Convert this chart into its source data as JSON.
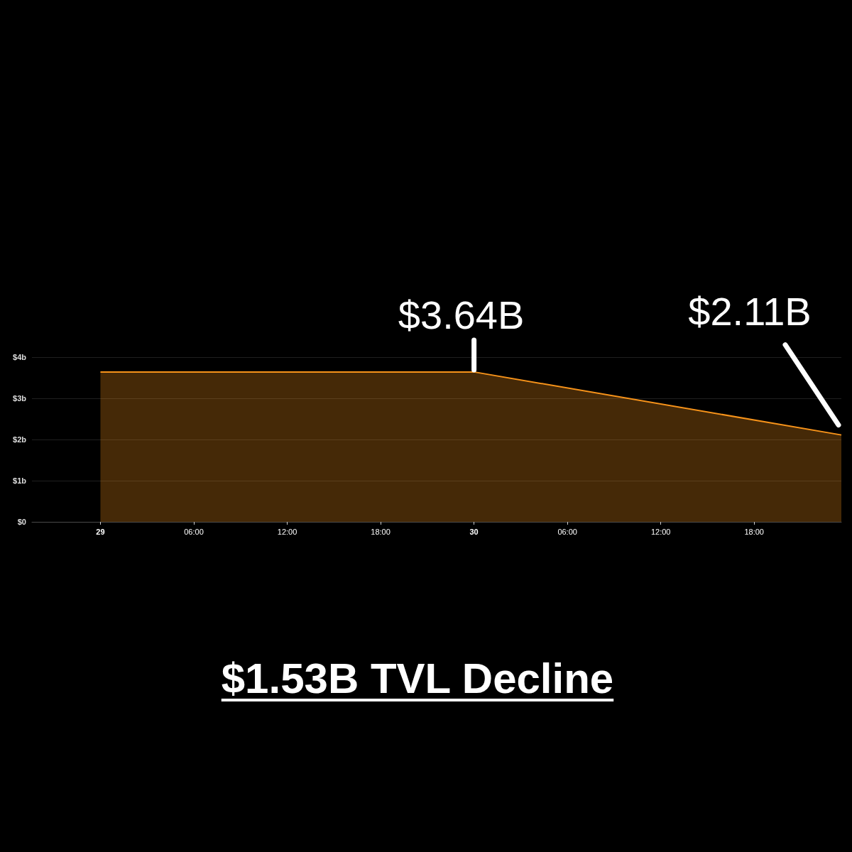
{
  "chart_data": {
    "type": "area",
    "title": "$1.53B TVL Decline",
    "x": [
      "--03-29T00:00",
      "--03-30T00:00",
      "--03-30T23:36"
    ],
    "values": [
      3.64,
      3.64,
      2.11
    ],
    "color": "#f7931a",
    "xlim": [
      "--03-28T19:36",
      "--03-30T23:36"
    ],
    "xticks": [
      {
        "value": "--03-29T00:00",
        "label": "29"
      },
      {
        "value": "--03-29T06:00",
        "label": "06:00"
      },
      {
        "value": "--03-29T12:00",
        "label": "12:00"
      },
      {
        "value": "--03-29T18:00",
        "label": "18:00"
      },
      {
        "value": "--03-30T00:00",
        "label": "30"
      },
      {
        "value": "--03-30T06:00",
        "label": "06:00"
      },
      {
        "value": "--03-30T12:00",
        "label": "12:00"
      },
      {
        "value": "--03-30T18:00",
        "label": "18:00"
      }
    ],
    "ylim": [
      0,
      4
    ],
    "yticks": [
      {
        "value": 0,
        "label": "$0"
      },
      {
        "value": 1,
        "label": "$1b"
      },
      {
        "value": 2,
        "label": "$2b"
      },
      {
        "value": 3,
        "label": "$3b"
      },
      {
        "value": 4,
        "label": "$4b"
      }
    ],
    "grid": "y",
    "marker": "none",
    "annotations": [
      {
        "text": "$3.64B",
        "x": "--03-30T00:00",
        "y": 3.64
      },
      {
        "text": "$2.11B",
        "x": "--03-30T23:36",
        "y": 2.11
      }
    ]
  }
}
